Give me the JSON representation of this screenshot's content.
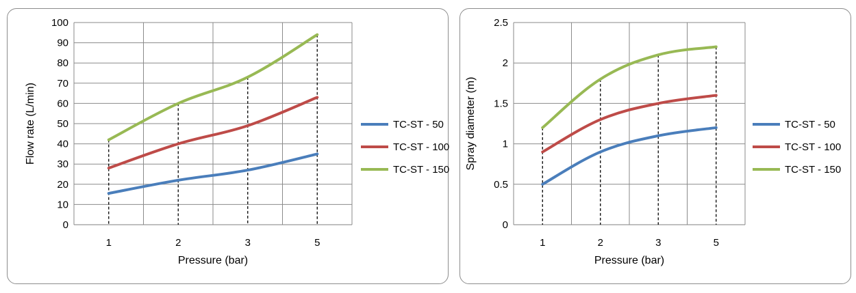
{
  "chart_data": [
    {
      "type": "line",
      "xlabel": "Pressure (bar)",
      "ylabel": "Flow rate (L/min)",
      "categories": [
        "1",
        "2",
        "3",
        "5"
      ],
      "ylim": [
        0,
        100
      ],
      "ytick_step": 10,
      "grid": true,
      "legend_position": "right",
      "series": [
        {
          "name": "TC-ST - 50",
          "color": "#4a7ebb",
          "values": [
            15.5,
            22,
            27,
            35
          ]
        },
        {
          "name": "TC-ST - 100",
          "color": "#be4b48",
          "values": [
            28,
            40,
            49,
            63
          ]
        },
        {
          "name": "TC-ST - 150",
          "color": "#98b954",
          "values": [
            42,
            60,
            73,
            94
          ]
        }
      ],
      "drop_lines_series": 2
    },
    {
      "type": "line",
      "xlabel": "Pressure (bar)",
      "ylabel": "Spray diameter (m)",
      "categories": [
        "1",
        "2",
        "3",
        "5"
      ],
      "ylim": [
        0,
        2.5
      ],
      "ytick_step": 0.5,
      "grid": true,
      "legend_position": "right",
      "series": [
        {
          "name": "TC-ST - 50",
          "color": "#4a7ebb",
          "values": [
            0.5,
            0.9,
            1.1,
            1.2
          ]
        },
        {
          "name": "TC-ST - 100",
          "color": "#be4b48",
          "values": [
            0.9,
            1.3,
            1.5,
            1.6
          ]
        },
        {
          "name": "TC-ST - 150",
          "color": "#98b954",
          "values": [
            1.2,
            1.8,
            2.1,
            2.2
          ]
        }
      ],
      "drop_lines_series": 2
    }
  ]
}
